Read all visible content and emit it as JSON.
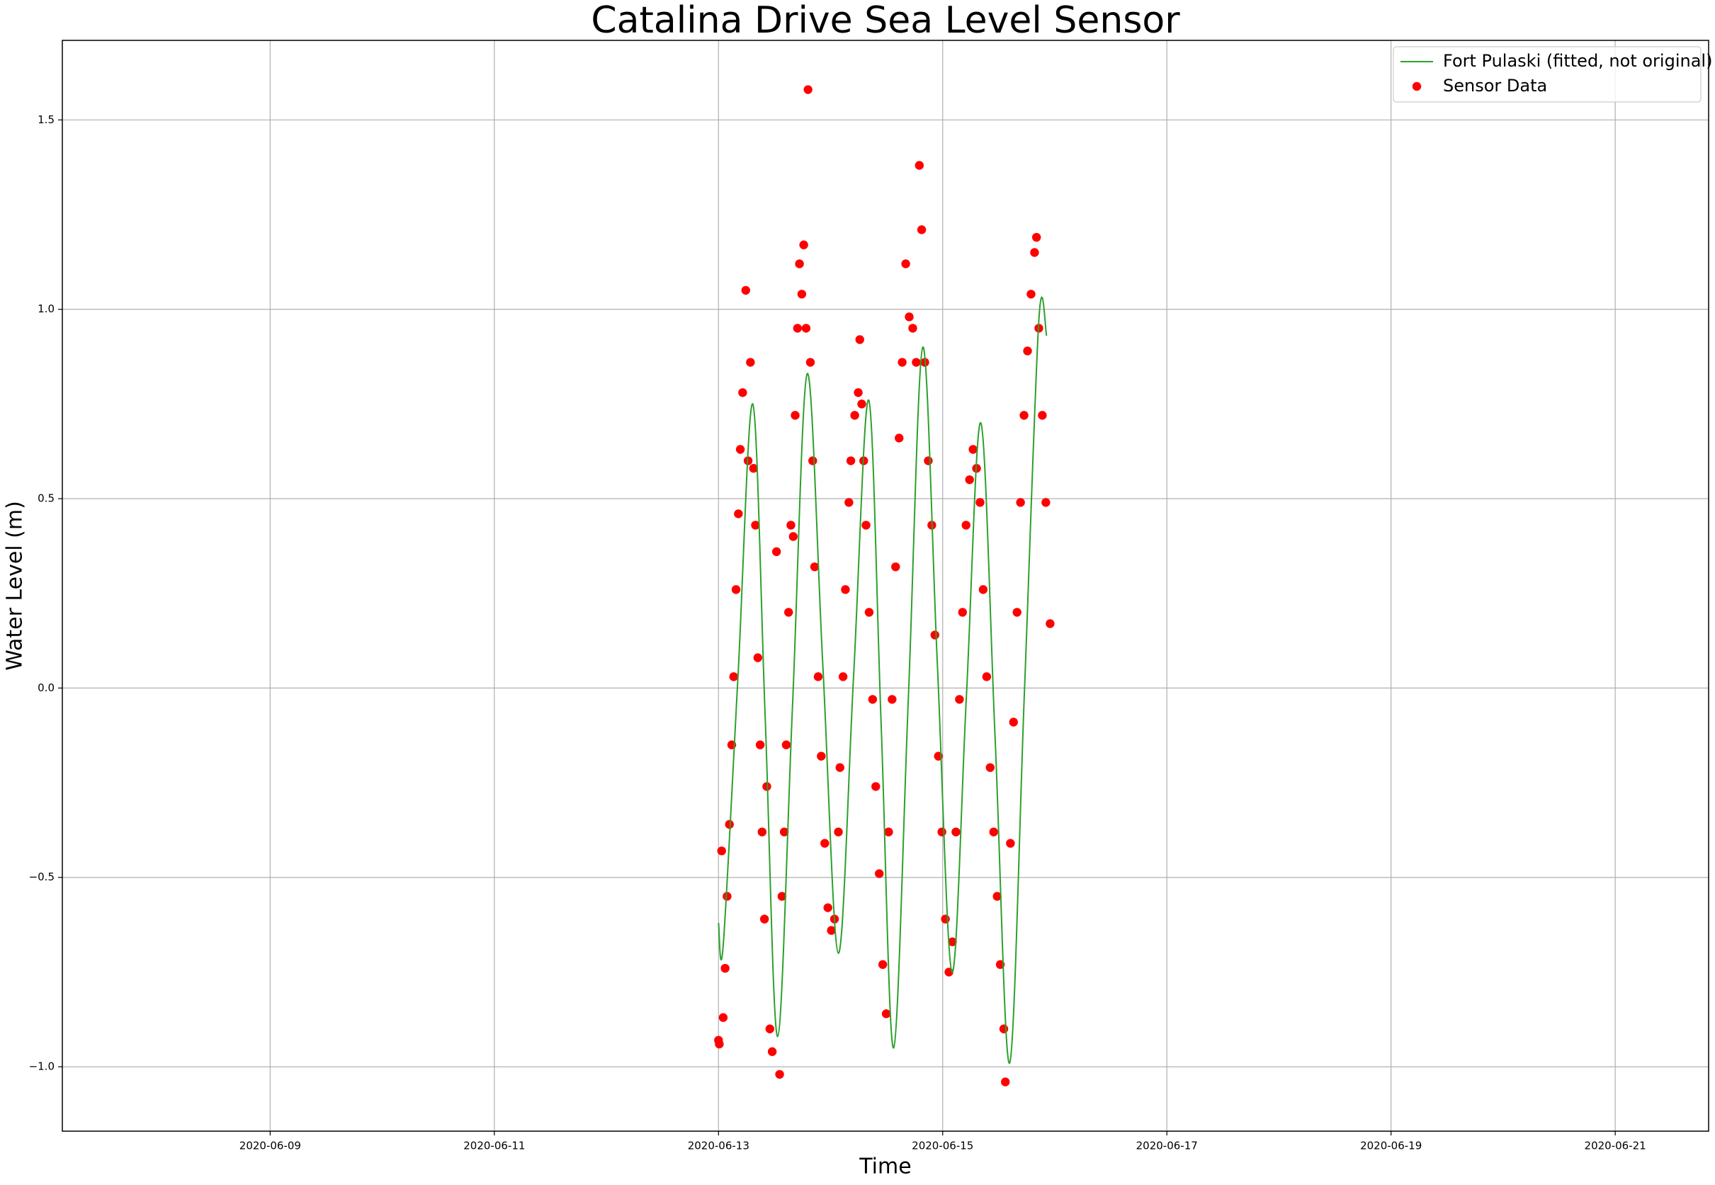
{
  "chart_data": {
    "type": "scatter",
    "title": "Catalina Drive Sea Level Sensor",
    "x_label": "Time",
    "y_label": "Water Level (m)",
    "xlim": [
      "2020-06-07T03:30",
      "2020-06-21T20:00"
    ],
    "xticks": [
      "2020-06-09",
      "2020-06-11",
      "2020-06-13",
      "2020-06-15",
      "2020-06-17",
      "2020-06-19",
      "2020-06-21"
    ],
    "ylim": [
      -1.17,
      1.71
    ],
    "yticks": [
      {
        "value": -1,
        "label": "−1.0"
      },
      {
        "value": -0.5,
        "label": "−0.5"
      },
      {
        "value": 0,
        "label": "0.0"
      },
      0.5,
      {
        "value": 1,
        "label": "1.0"
      },
      1.5
    ],
    "grid": true,
    "legend": "upper right",
    "series": [
      {
        "name": "Fort Pulaski (fitted, not original)",
        "color": "#2ca02c",
        "type": "line",
        "x": [
          "2020-06-13T00:00",
          "2020-06-13T01:00",
          "2020-06-13T04:10",
          "2020-06-13T07:20",
          "2020-06-13T10:00",
          "2020-06-13T12:40",
          "2020-06-13T15:50",
          "2020-06-13T19:00",
          "2020-06-13T22:20",
          "2020-06-14T01:40",
          "2020-06-14T04:55",
          "2020-06-14T08:10",
          "2020-06-14T10:50",
          "2020-06-14T13:30",
          "2020-06-14T16:40",
          "2020-06-14T19:45",
          "2020-06-14T22:50",
          "2020-06-15T02:00",
          "2020-06-15T05:05",
          "2020-06-15T08:10",
          "2020-06-15T11:15",
          "2020-06-15T14:20",
          "2020-06-15T17:30",
          "2020-06-15T20:35",
          "2020-06-15T22:15"
        ],
        "values": [
          -0.62,
          -0.68,
          0.03,
          0.75,
          -0.08,
          -0.92,
          -0.05,
          0.83,
          0.06,
          -0.7,
          0.03,
          0.76,
          -0.1,
          -0.95,
          -0.02,
          0.9,
          0.07,
          -0.75,
          -0.02,
          0.7,
          -0.14,
          -0.99,
          -0.01,
          0.97,
          0.93
        ]
      },
      {
        "name": "Sensor Data",
        "color": "#ff0000",
        "type": "scatter",
        "x": [
          "2020-06-13T00:00",
          "2020-06-13T00:10",
          "2020-06-13T00:40",
          "2020-06-13T01:00",
          "2020-06-13T01:25",
          "2020-06-13T01:50",
          "2020-06-13T02:20",
          "2020-06-13T02:50",
          "2020-06-13T03:15",
          "2020-06-13T03:45",
          "2020-06-13T04:15",
          "2020-06-13T04:40",
          "2020-06-13T05:10",
          "2020-06-13T05:50",
          "2020-06-13T06:20",
          "2020-06-13T06:50",
          "2020-06-13T07:30",
          "2020-06-13T07:55",
          "2020-06-13T08:25",
          "2020-06-13T08:55",
          "2020-06-13T09:20",
          "2020-06-13T09:50",
          "2020-06-13T10:20",
          "2020-06-13T11:00",
          "2020-06-13T11:30",
          "2020-06-13T12:25",
          "2020-06-13T13:05",
          "2020-06-13T13:35",
          "2020-06-13T14:05",
          "2020-06-13T14:30",
          "2020-06-13T15:00",
          "2020-06-13T15:30",
          "2020-06-13T16:00",
          "2020-06-13T16:25",
          "2020-06-13T16:55",
          "2020-06-13T17:20",
          "2020-06-13T17:50",
          "2020-06-13T18:15",
          "2020-06-13T18:45",
          "2020-06-13T19:10",
          "2020-06-13T19:40",
          "2020-06-13T20:10",
          "2020-06-13T20:35",
          "2020-06-13T21:20",
          "2020-06-13T22:00",
          "2020-06-13T22:45",
          "2020-06-13T23:25",
          "2020-06-14T00:10",
          "2020-06-14T00:50",
          "2020-06-14T01:40",
          "2020-06-14T02:00",
          "2020-06-14T02:40",
          "2020-06-14T03:10",
          "2020-06-14T03:55",
          "2020-06-14T04:20",
          "2020-06-14T05:10",
          "2020-06-14T05:55",
          "2020-06-14T06:15",
          "2020-06-14T06:40",
          "2020-06-14T07:05",
          "2020-06-14T07:35",
          "2020-06-14T08:15",
          "2020-06-14T09:00",
          "2020-06-14T09:40",
          "2020-06-14T10:25",
          "2020-06-14T11:10",
          "2020-06-14T11:55",
          "2020-06-14T12:25",
          "2020-06-14T13:10",
          "2020-06-14T13:55",
          "2020-06-14T14:40",
          "2020-06-14T15:20",
          "2020-06-14T16:05",
          "2020-06-14T16:50",
          "2020-06-14T17:35",
          "2020-06-14T18:20",
          "2020-06-14T19:00",
          "2020-06-14T19:30",
          "2020-06-14T20:10",
          "2020-06-14T20:55",
          "2020-06-14T21:40",
          "2020-06-14T22:20",
          "2020-06-14T23:05",
          "2020-06-14T23:50",
          "2020-06-15T00:35",
          "2020-06-15T01:20",
          "2020-06-15T02:05",
          "2020-06-15T02:50",
          "2020-06-15T03:35",
          "2020-06-15T04:15",
          "2020-06-15T05:00",
          "2020-06-15T05:45",
          "2020-06-15T06:30",
          "2020-06-15T07:15",
          "2020-06-15T08:00",
          "2020-06-15T08:40",
          "2020-06-15T09:25",
          "2020-06-15T10:10",
          "2020-06-15T10:55",
          "2020-06-15T11:40",
          "2020-06-15T12:20",
          "2020-06-15T13:05",
          "2020-06-15T13:25",
          "2020-06-15T14:30",
          "2020-06-15T15:10",
          "2020-06-15T15:55",
          "2020-06-15T16:40",
          "2020-06-15T17:25",
          "2020-06-15T18:10",
          "2020-06-15T18:55",
          "2020-06-15T19:40",
          "2020-06-15T20:05",
          "2020-06-15T20:35",
          "2020-06-15T21:20",
          "2020-06-15T22:05",
          "2020-06-15T23:00"
        ],
        "values": [
          -0.93,
          -0.94,
          -0.43,
          -0.87,
          -0.74,
          -0.55,
          -0.36,
          -0.15,
          0.03,
          0.26,
          0.46,
          0.63,
          0.78,
          1.05,
          0.6,
          0.86,
          0.58,
          0.43,
          0.08,
          -0.15,
          -0.38,
          -0.61,
          -0.26,
          -0.9,
          -0.96,
          0.36,
          -1.02,
          -0.55,
          -0.38,
          -0.15,
          0.2,
          0.43,
          0.4,
          0.72,
          0.95,
          1.12,
          1.04,
          1.17,
          0.95,
          1.58,
          0.86,
          0.6,
          0.32,
          0.03,
          -0.18,
          -0.41,
          -0.58,
          -0.64,
          -0.61,
          -0.38,
          -0.21,
          0.03,
          0.26,
          0.49,
          0.6,
          0.72,
          0.78,
          0.92,
          0.75,
          0.6,
          0.43,
          0.2,
          -0.03,
          -0.26,
          -0.49,
          -0.73,
          -0.86,
          -0.38,
          -0.03,
          0.32,
          0.66,
          0.86,
          1.12,
          0.98,
          0.95,
          0.86,
          1.38,
          1.21,
          0.86,
          0.6,
          0.43,
          0.14,
          -0.18,
          -0.38,
          -0.61,
          -0.75,
          -0.67,
          -0.38,
          -0.03,
          0.2,
          0.43,
          0.55,
          0.63,
          0.58,
          0.49,
          0.26,
          0.03,
          -0.21,
          -0.38,
          -0.55,
          -0.73,
          -0.9,
          -1.04,
          -0.41,
          -0.09,
          0.2,
          0.49,
          0.72,
          0.89,
          1.04,
          1.15,
          1.19,
          0.95,
          0.72,
          0.49,
          0.17
        ]
      }
    ]
  }
}
